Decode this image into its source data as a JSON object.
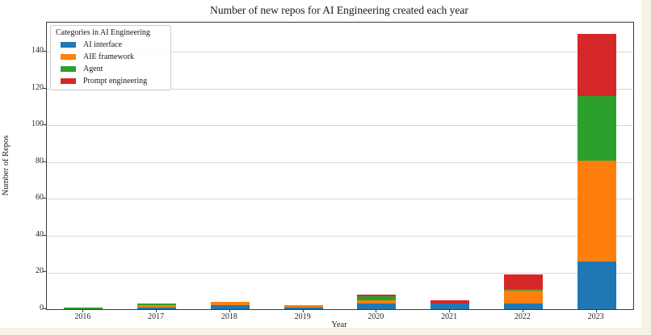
{
  "page": {
    "background_color": "#f6f2e6",
    "figure_background_color": "#ffffff"
  },
  "chart_data": {
    "type": "bar",
    "stacked": true,
    "title": "Number of new repos for AI Engineering created each year",
    "xlabel": "Year",
    "ylabel": "Number of Repos",
    "categories": [
      "2016",
      "2017",
      "2018",
      "2019",
      "2020",
      "2021",
      "2022",
      "2023"
    ],
    "series": [
      {
        "name": "AI interface",
        "color": "#1f77b4",
        "values": [
          0,
          1,
          2,
          1,
          3,
          3,
          3,
          26
        ]
      },
      {
        "name": "AIE framework",
        "color": "#ff7f0e",
        "values": [
          0,
          1,
          2,
          1,
          2,
          0,
          7,
          55
        ]
      },
      {
        "name": "Agent",
        "color": "#2ca02c",
        "values": [
          1,
          1,
          0,
          0,
          2,
          0,
          1,
          35
        ]
      },
      {
        "name": "Prompt engineering",
        "color": "#d62728",
        "values": [
          0,
          0,
          0,
          0,
          1,
          2,
          8,
          34
        ]
      }
    ],
    "totals": [
      1,
      3,
      4,
      2,
      8,
      5,
      19,
      150
    ],
    "legend_title": "Categories in AI Engineering",
    "legend_position": "upper left",
    "ylim": [
      0,
      156
    ],
    "yticks": [
      0,
      20,
      40,
      60,
      80,
      100,
      120,
      140
    ],
    "grid": true,
    "grid_color": "#d6d6d6",
    "spine_color": "#3a3a3a"
  }
}
